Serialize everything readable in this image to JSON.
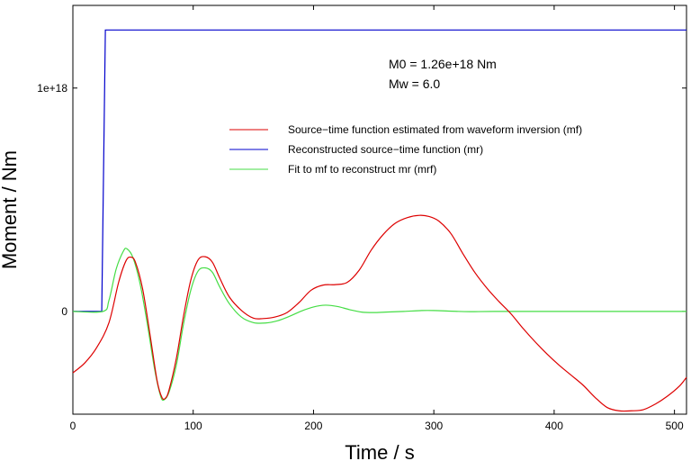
{
  "chart_data": {
    "type": "line",
    "xlabel": "Time / s",
    "ylabel": "Moment / Nm",
    "xlim": [
      0,
      510
    ],
    "ylim": [
      -4.6e+17,
      1.37e+18
    ],
    "xticks": [
      0,
      100,
      200,
      300,
      400,
      500
    ],
    "xtick_labels": [
      "0",
      "100",
      "200",
      "300",
      "400",
      "500"
    ],
    "yticks": [
      0,
      1e+18
    ],
    "ytick_labels": [
      "0",
      "1e+18"
    ],
    "grid": false,
    "legend_position": "upper-right",
    "annotations": [
      "M0 = 1.26e+18 Nm",
      "Mw = 6.0"
    ],
    "series": [
      {
        "name": "Source−time function estimated from waveform inversion (mf)",
        "color": "#dd0000",
        "points": [
          [
            0,
            -2.75e+17
          ],
          [
            10,
            -2.3e+17
          ],
          [
            20,
            -1.6e+17
          ],
          [
            30,
            -5e+16
          ],
          [
            38,
            1.3e+17
          ],
          [
            44,
            2.25e+17
          ],
          [
            48,
            2.43e+17
          ],
          [
            52,
            2.2e+17
          ],
          [
            58,
            1e+17
          ],
          [
            64,
            -1e+17
          ],
          [
            70,
            -3.1e+17
          ],
          [
            74,
            -3.85e+17
          ],
          [
            77,
            -3.88e+17
          ],
          [
            80,
            -3.5e+17
          ],
          [
            86,
            -2.1e+17
          ],
          [
            92,
            -2e+16
          ],
          [
            98,
            1.4e+17
          ],
          [
            104,
            2.3e+17
          ],
          [
            110,
            2.45e+17
          ],
          [
            116,
            2.2e+17
          ],
          [
            122,
            1.5e+17
          ],
          [
            130,
            6.5e+16
          ],
          [
            140,
            5000000000000000.0
          ],
          [
            150,
            -3e+16
          ],
          [
            158,
            -3.2e+16
          ],
          [
            168,
            -2.5e+16
          ],
          [
            178,
            -5000000000000000.0
          ],
          [
            188,
            4e+16
          ],
          [
            198,
            9.5e+16
          ],
          [
            208,
            1.18e+17
          ],
          [
            218,
            1.2e+17
          ],
          [
            228,
            1.3e+17
          ],
          [
            238,
            1.85e+17
          ],
          [
            248,
            2.75e+17
          ],
          [
            258,
            3.45e+17
          ],
          [
            268,
            3.95e+17
          ],
          [
            278,
            4.2e+17
          ],
          [
            288,
            4.3e+17
          ],
          [
            296,
            4.25e+17
          ],
          [
            304,
            4.05e+17
          ],
          [
            314,
            3.5e+17
          ],
          [
            324,
            2.6e+17
          ],
          [
            334,
            1.75e+17
          ],
          [
            344,
            1.05e+17
          ],
          [
            354,
            4.5e+16
          ],
          [
            364,
            -1e+16
          ],
          [
            374,
            -7.5e+16
          ],
          [
            384,
            -1.35e+17
          ],
          [
            394,
            -1.9e+17
          ],
          [
            404,
            -2.4e+17
          ],
          [
            414,
            -2.85e+17
          ],
          [
            424,
            -3.3e+17
          ],
          [
            434,
            -3.85e+17
          ],
          [
            444,
            -4.3e+17
          ],
          [
            454,
            -4.45e+17
          ],
          [
            464,
            -4.45e+17
          ],
          [
            474,
            -4.4e+17
          ],
          [
            484,
            -4.15e+17
          ],
          [
            494,
            -3.8e+17
          ],
          [
            504,
            -3.35e+17
          ],
          [
            510,
            -2.95e+17
          ]
        ]
      },
      {
        "name": "Reconstructed source−time function (mr)",
        "color": "#0000cc",
        "points": [
          [
            0,
            0
          ],
          [
            24,
            0
          ],
          [
            27,
            1.26e+18
          ],
          [
            510,
            1.26e+18
          ]
        ]
      },
      {
        "name": "Fit to mf to reconstruct mr (mrf)",
        "color": "#44dd44",
        "points": [
          [
            0,
            0
          ],
          [
            25,
            0
          ],
          [
            30,
            5e+16
          ],
          [
            36,
            1.9e+17
          ],
          [
            42,
            2.7e+17
          ],
          [
            45,
            2.8e+17
          ],
          [
            50,
            2.4e+17
          ],
          [
            56,
            1.2e+17
          ],
          [
            62,
            -6e+16
          ],
          [
            68,
            -2.6e+17
          ],
          [
            73,
            -3.8e+17
          ],
          [
            76,
            -3.95e+17
          ],
          [
            80,
            -3.6e+17
          ],
          [
            86,
            -2.4e+17
          ],
          [
            92,
            -5.5e+16
          ],
          [
            98,
            9.5e+16
          ],
          [
            104,
            1.8e+17
          ],
          [
            110,
            1.95e+17
          ],
          [
            116,
            1.75e+17
          ],
          [
            122,
            1.1e+17
          ],
          [
            130,
            3.5e+16
          ],
          [
            140,
            -2.5e+16
          ],
          [
            150,
            -5e+16
          ],
          [
            160,
            -5.2e+16
          ],
          [
            170,
            -4.2e+16
          ],
          [
            180,
            -2.2e+16
          ],
          [
            190,
            2000000000000000.0
          ],
          [
            200,
            2e+16
          ],
          [
            210,
            2.8e+16
          ],
          [
            220,
            2.2e+16
          ],
          [
            230,
            8000000000000000.0
          ],
          [
            240,
            -3000000000000000.0
          ],
          [
            250,
            -5000000000000000.0
          ],
          [
            260,
            -3000000000000000.0
          ],
          [
            275,
            0.0
          ],
          [
            290,
            4000000000000000.0
          ],
          [
            300,
            4000000000000000.0
          ],
          [
            315,
            1000000000000000.0
          ],
          [
            330,
            -1000000000000000.0
          ],
          [
            350,
            0
          ],
          [
            400,
            0
          ],
          [
            510,
            0
          ]
        ]
      }
    ]
  }
}
